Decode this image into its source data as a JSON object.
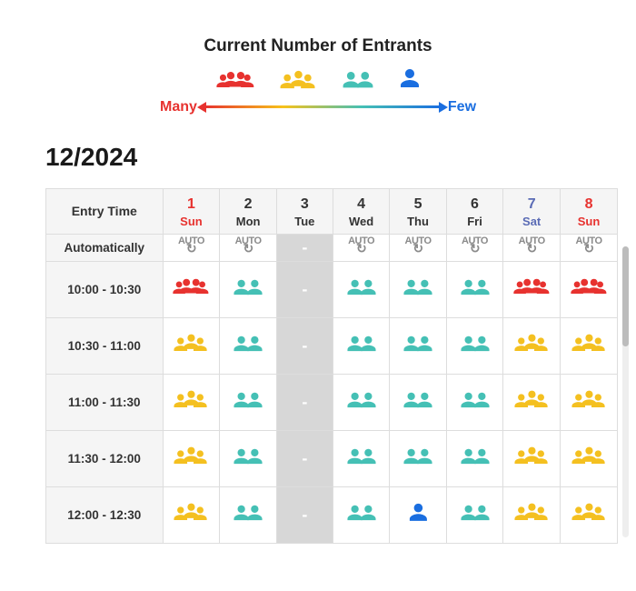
{
  "header": {
    "title": "Current Number of Entrants",
    "label_many": "Many",
    "label_few": "Few"
  },
  "month_label": "12/2024",
  "colors": {
    "many": "#e7322f",
    "some": "#f4c020",
    "normal": "#45c0b5",
    "few": "#1a6ee0",
    "closed_bg": "#d7d7d7"
  },
  "legend_levels": [
    "many",
    "some",
    "normal",
    "few"
  ],
  "columns": {
    "first_header": "Entry Time",
    "days": [
      {
        "num": "1",
        "name": "Sun",
        "type": "sun"
      },
      {
        "num": "2",
        "name": "Mon",
        "type": "weekday"
      },
      {
        "num": "3",
        "name": "Tue",
        "type": "weekday"
      },
      {
        "num": "4",
        "name": "Wed",
        "type": "weekday"
      },
      {
        "num": "5",
        "name": "Thu",
        "type": "weekday"
      },
      {
        "num": "6",
        "name": "Fri",
        "type": "weekday"
      },
      {
        "num": "7",
        "name": "Sat",
        "type": "sat"
      },
      {
        "num": "8",
        "name": "Sun",
        "type": "sun"
      }
    ]
  },
  "rows": [
    {
      "label": "Automatically",
      "kind": "auto",
      "cells": [
        "auto",
        "auto",
        "closed",
        "auto",
        "auto",
        "auto",
        "auto",
        "auto"
      ]
    },
    {
      "label": "10:00 - 10:30",
      "kind": "slot",
      "cells": [
        "many",
        "normal",
        "closed",
        "normal",
        "normal",
        "normal",
        "many",
        "many"
      ]
    },
    {
      "label": "10:30 - 11:00",
      "kind": "slot",
      "cells": [
        "some",
        "normal",
        "closed",
        "normal",
        "normal",
        "normal",
        "some",
        "some"
      ]
    },
    {
      "label": "11:00 - 11:30",
      "kind": "slot",
      "cells": [
        "some",
        "normal",
        "closed",
        "normal",
        "normal",
        "normal",
        "some",
        "some"
      ]
    },
    {
      "label": "11:30 - 12:00",
      "kind": "slot",
      "cells": [
        "some",
        "normal",
        "closed",
        "normal",
        "normal",
        "normal",
        "some",
        "some"
      ]
    },
    {
      "label": "12:00 - 12:30",
      "kind": "slot",
      "cells": [
        "some",
        "normal",
        "closed",
        "normal",
        "few",
        "normal",
        "some",
        "some"
      ]
    }
  ]
}
